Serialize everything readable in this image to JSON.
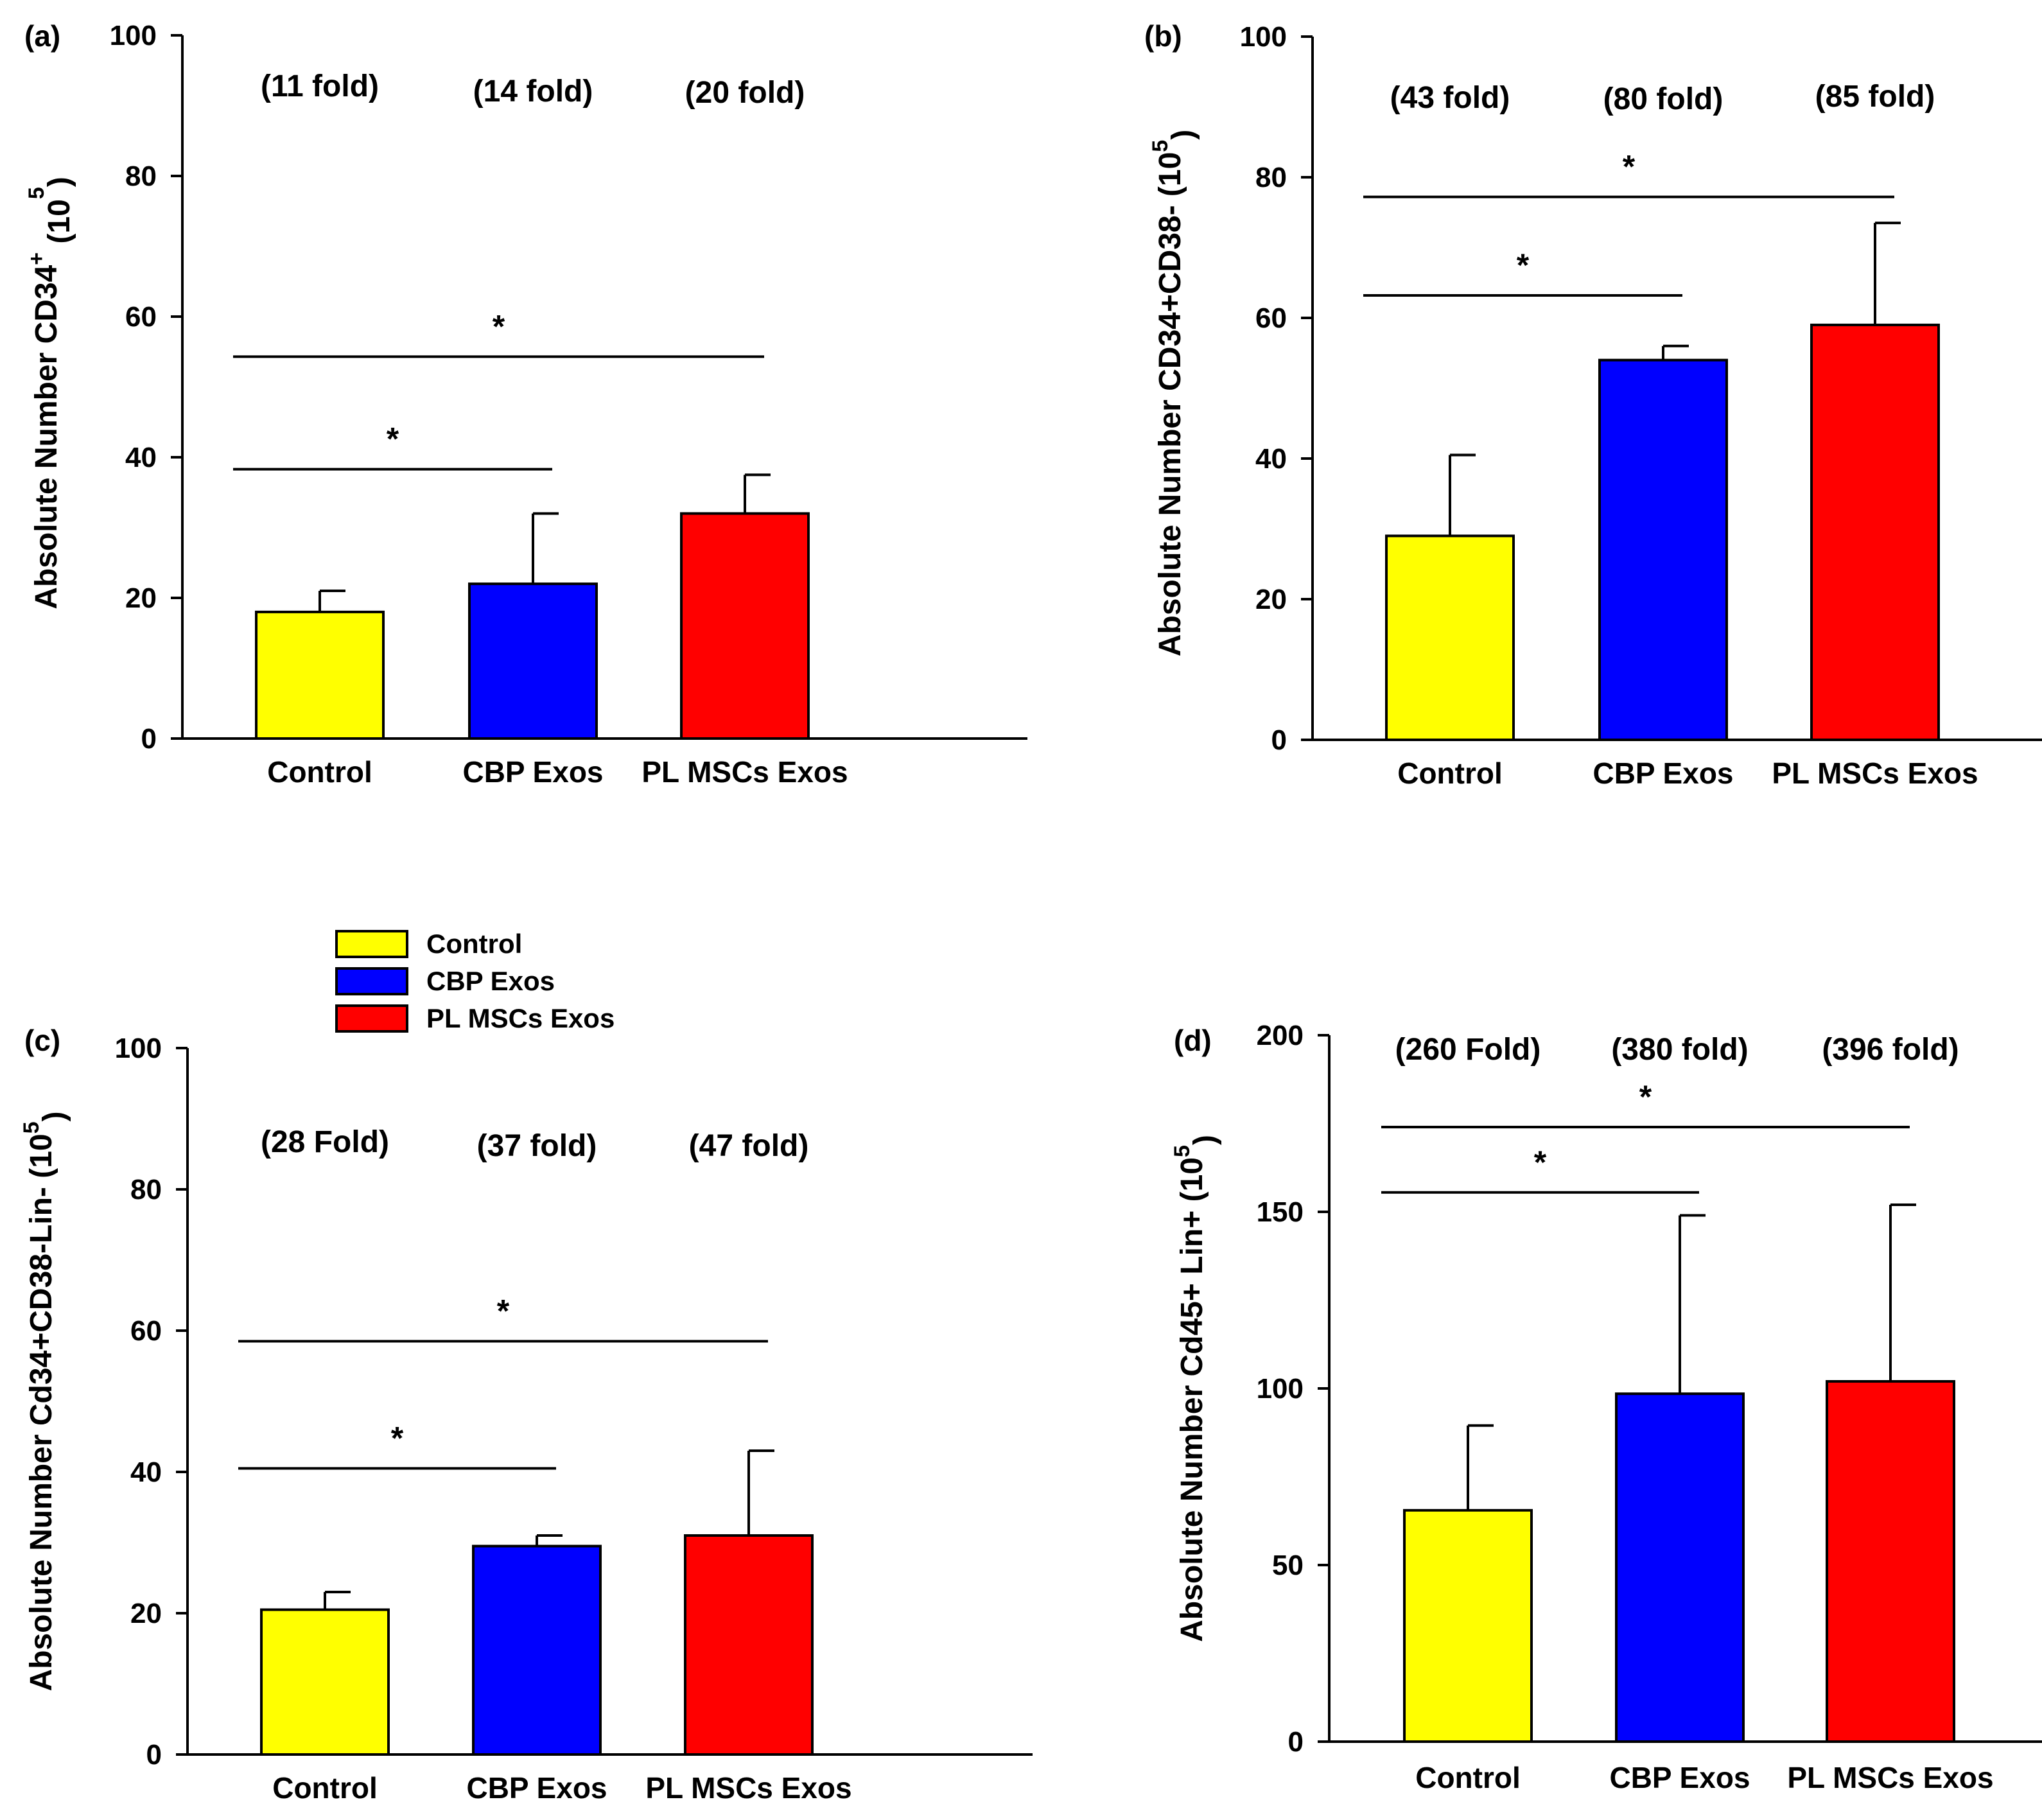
{
  "legend": {
    "entries": [
      {
        "label": "Control",
        "color": "#ffff00"
      },
      {
        "label": "CBP Exos",
        "color": "#0000ff"
      },
      {
        "label": "PL MSCs Exos",
        "color": "#ff0000"
      }
    ]
  },
  "chart_data": [
    {
      "id": "a",
      "panel_label": "(a)",
      "type": "bar",
      "ylabel_main": "Absolute Number CD34",
      "ylabel_sup": "+",
      "ylabel_tail": " (10",
      "ylabel_exp": "5",
      "ylabel_close": ")",
      "ylim": [
        0,
        100
      ],
      "yticks": [
        0,
        20,
        40,
        60,
        80,
        100
      ],
      "categories": [
        "Control",
        "CBP Exos",
        "PL MSCs Exos"
      ],
      "colors": [
        "#ffff00",
        "#0000ff",
        "#ff0000"
      ],
      "values": [
        18,
        22,
        32
      ],
      "errors": [
        3,
        10,
        5.5
      ],
      "fold_labels": [
        "(11 fold)",
        "(14 fold)",
        "(20 fold)"
      ],
      "significance": [
        {
          "from": 0,
          "to": 1,
          "y": 38.3,
          "label": "*"
        },
        {
          "from": 0,
          "to": 2,
          "y": 54.3,
          "label": "*"
        }
      ]
    },
    {
      "id": "b",
      "panel_label": "(b)",
      "type": "bar",
      "ylabel_main": "Absolute Number CD34+CD38- (10",
      "ylabel_sup": "",
      "ylabel_tail": "",
      "ylabel_exp": "5",
      "ylabel_close": ")",
      "ylim": [
        0,
        100
      ],
      "yticks": [
        0,
        20,
        40,
        60,
        80,
        100
      ],
      "categories": [
        "Control",
        "CBP Exos",
        "PL MSCs Exos"
      ],
      "colors": [
        "#ffff00",
        "#0000ff",
        "#ff0000"
      ],
      "values": [
        29,
        54,
        59
      ],
      "errors": [
        11.5,
        2,
        14.5
      ],
      "fold_labels": [
        "(43 fold)",
        "(80 fold)",
        "(85 fold)"
      ],
      "significance": [
        {
          "from": 0,
          "to": 1,
          "y": 63.2,
          "label": "*"
        },
        {
          "from": 0,
          "to": 2,
          "y": 77.2,
          "label": "*"
        }
      ]
    },
    {
      "id": "c",
      "panel_label": "(c)",
      "type": "bar",
      "ylabel_main": "Absolute Number Cd34+CD38-Lin- (10",
      "ylabel_sup": "",
      "ylabel_tail": "",
      "ylabel_exp": "5",
      "ylabel_close": ")",
      "ylim": [
        0,
        100
      ],
      "yticks": [
        0,
        20,
        40,
        60,
        80,
        100
      ],
      "categories": [
        "Control",
        "CBP Exos",
        "PL MSCs Exos"
      ],
      "colors": [
        "#ffff00",
        "#0000ff",
        "#ff0000"
      ],
      "values": [
        20.5,
        29.5,
        31
      ],
      "errors": [
        2.5,
        1.5,
        12
      ],
      "fold_labels": [
        "(28 Fold)",
        "(37 fold)",
        "(47 fold)"
      ],
      "significance": [
        {
          "from": 0,
          "to": 1,
          "y": 40.5,
          "label": "*"
        },
        {
          "from": 0,
          "to": 2,
          "y": 58.5,
          "label": "*"
        }
      ]
    },
    {
      "id": "d",
      "panel_label": "(d)",
      "type": "bar",
      "ylabel_main": "Absolute Number Cd45+ Lin+ (10",
      "ylabel_sup": "",
      "ylabel_tail": "",
      "ylabel_exp": "5",
      "ylabel_close": ")",
      "ylim": [
        0,
        200
      ],
      "yticks": [
        0,
        50,
        100,
        150,
        200
      ],
      "categories": [
        "Control",
        "CBP Exos",
        "PL MSCs Exos"
      ],
      "colors": [
        "#ffff00",
        "#0000ff",
        "#ff0000"
      ],
      "values": [
        65.5,
        98.5,
        102
      ],
      "errors": [
        24,
        50.5,
        50
      ],
      "fold_labels": [
        "(260 Fold)",
        "(380 fold)",
        "(396 fold)"
      ],
      "significance": [
        {
          "from": 0,
          "to": 1,
          "y": 155.5,
          "label": "*"
        },
        {
          "from": 0,
          "to": 2,
          "y": 174,
          "label": "*"
        }
      ]
    }
  ]
}
